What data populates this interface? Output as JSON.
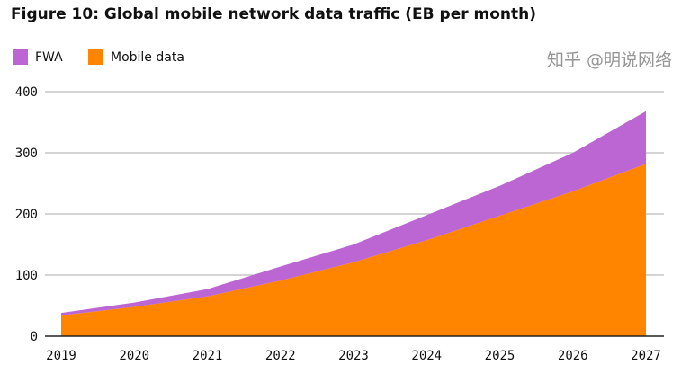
{
  "chart_data": {
    "type": "area",
    "stacked": true,
    "title": "Figure 10: Global mobile network data traffic (EB per month)",
    "xlabel": "",
    "ylabel": "",
    "categories": [
      "2019",
      "2020",
      "2021",
      "2022",
      "2023",
      "2024",
      "2025",
      "2026",
      "2027"
    ],
    "ylim": [
      0,
      400
    ],
    "yticks": [
      0,
      100,
      200,
      300,
      400
    ],
    "grid": true,
    "legend_position": "top-left",
    "series": [
      {
        "name": "Mobile data",
        "color": "#ff8400",
        "values": [
          34,
          48,
          65,
          91,
          121,
          157,
          197,
          237,
          282
        ]
      },
      {
        "name": "FWA",
        "color": "#bb66d2",
        "values": [
          4,
          7,
          12,
          23,
          29,
          41,
          49,
          63,
          86
        ]
      }
    ]
  },
  "legend": [
    {
      "label": "FWA",
      "color": "#bb66d2"
    },
    {
      "label": "Mobile data",
      "color": "#ff8400"
    }
  ],
  "watermark": "知乎 @明说网络"
}
